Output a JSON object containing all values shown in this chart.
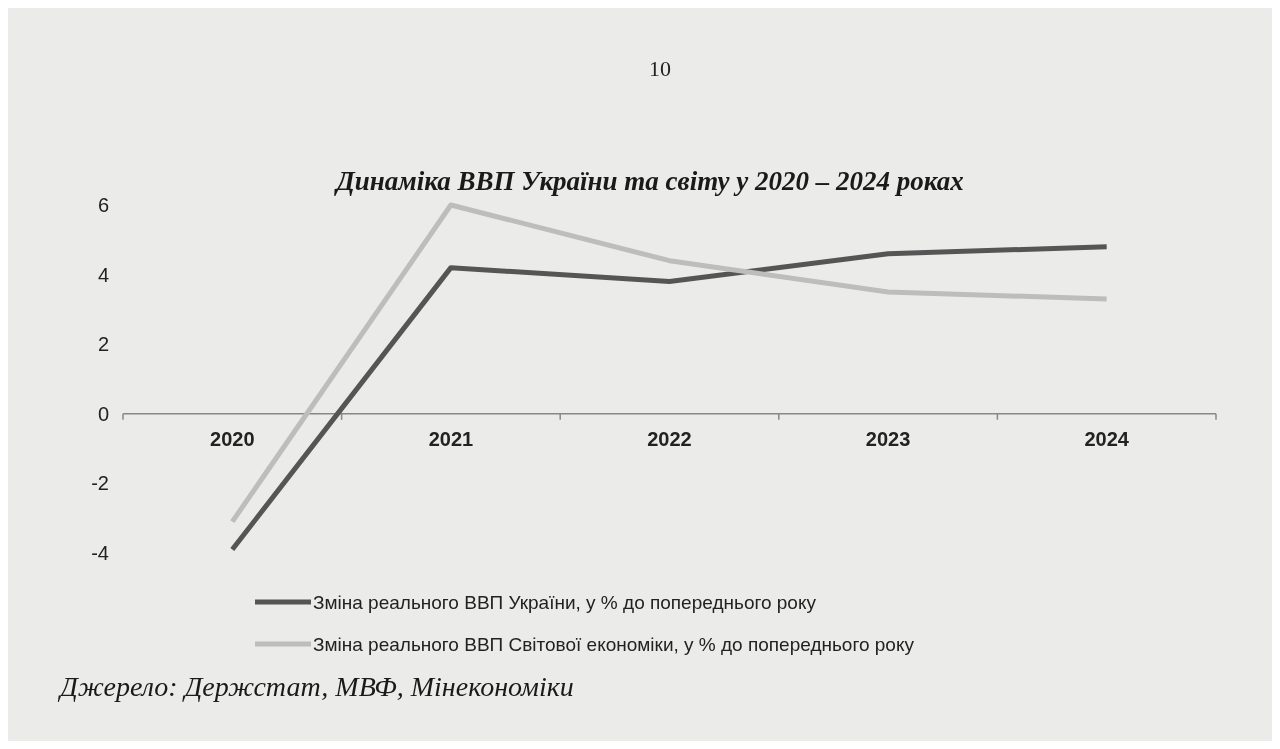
{
  "chart_data": {
    "type": "line",
    "title": "Динаміка ВВП України та світу у 2020 – 2024 роках",
    "categories": [
      "2020",
      "2021",
      "2022",
      "2023",
      "2024"
    ],
    "series": [
      {
        "name": "Зміна реального ВВП України, у % до попереднього року",
        "color": "#555555",
        "values": [
          -3.9,
          4.2,
          3.8,
          4.6,
          4.8
        ]
      },
      {
        "name": "Зміна реального ВВП Світової економіки, у % до попереднього року",
        "color": "#bdbdbd",
        "values": [
          -3.1,
          6.0,
          4.4,
          3.5,
          3.3
        ]
      }
    ],
    "ylim": [
      -4,
      6
    ],
    "yticks": [
      -4,
      -2,
      0,
      2,
      4,
      6
    ],
    "legend": "bottom",
    "annotations": [
      "10",
      "Джерело: Держстат, МВФ, Мінекономіки"
    ]
  }
}
